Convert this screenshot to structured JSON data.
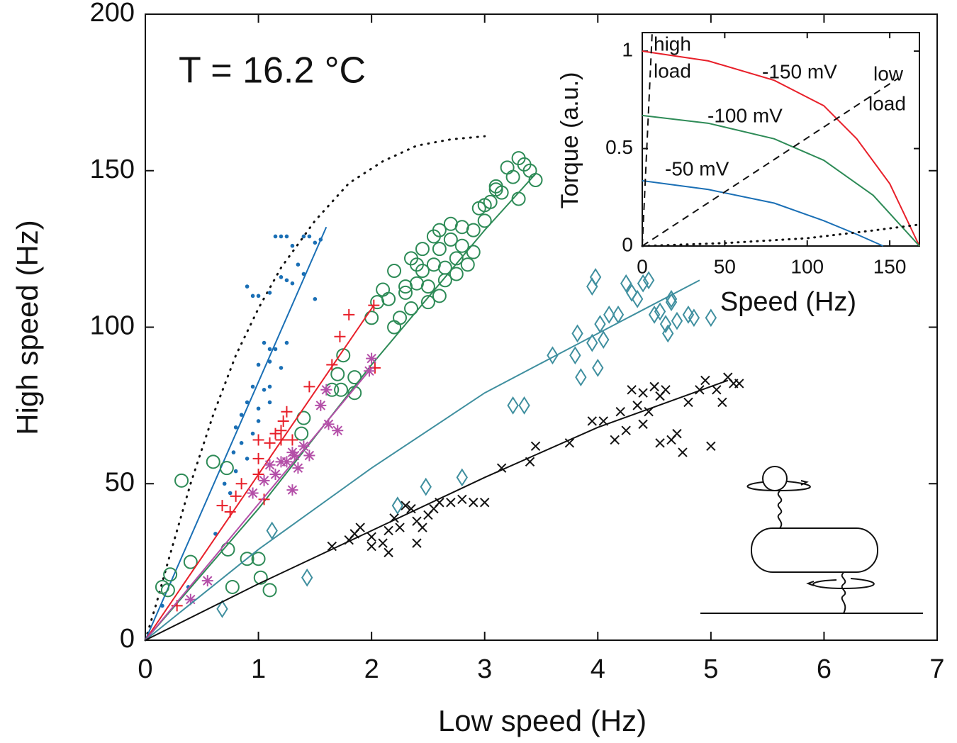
{
  "chart_data": [
    {
      "type": "scatter",
      "xlabel": "Low speed (Hz)",
      "ylabel": "High speed (Hz)",
      "annotation": "T = 16.2 °C",
      "xlim": [
        0,
        7
      ],
      "ylim": [
        0,
        200
      ],
      "xticks": [
        0,
        1,
        2,
        3,
        4,
        5,
        6,
        7
      ],
      "yticks": [
        0,
        50,
        100,
        150,
        200
      ],
      "series": [
        {
          "color": "#1a6fb5",
          "marker": "dot",
          "x": [
            1.15,
            1.2,
            1.25,
            1.3,
            1.4,
            1.45,
            1.5,
            1.55,
            0.9,
            0.95,
            1.0,
            1.1,
            1.2,
            1.25,
            1.3,
            1.35,
            1.4,
            1.5,
            1.05,
            1.1,
            1.15,
            1.25,
            1.0,
            1.1,
            1.2,
            0.95,
            1.05,
            1.1,
            0.9,
            1.0,
            1.1,
            0.85,
            1.0,
            0.8,
            0.95,
            0.85,
            0.78,
            0.9,
            0.8,
            0.7,
            0.75,
            0.62,
            0.38,
            0.15
          ],
          "values": [
            129,
            129,
            129,
            126,
            129,
            129,
            127,
            128,
            113,
            110,
            110,
            111,
            116,
            115,
            114,
            120,
            117,
            109,
            95,
            93,
            93,
            95,
            88,
            89,
            87,
            81,
            80,
            81,
            76,
            74,
            76,
            72,
            70,
            68,
            66,
            63,
            60,
            58,
            54,
            50,
            47,
            34,
            17,
            11
          ],
          "fit": {
            "x": [
              0,
              1.6
            ],
            "values": [
              0,
              132
            ]
          }
        },
        {
          "color": "#2e8b57",
          "marker": "circle",
          "x": [
            0.15,
            0.2,
            0.22,
            0.4,
            0.6,
            0.72,
            0.73,
            0.77,
            0.9,
            1.0,
            1.02,
            1.1,
            0.32,
            1.38,
            1.4,
            1.65,
            1.7,
            1.73,
            1.75,
            1.85,
            1.85,
            2.0,
            2.05,
            2.1,
            2.15,
            2.2,
            2.25,
            2.3,
            2.35,
            2.4,
            2.45,
            2.5,
            2.55,
            2.6,
            2.65,
            2.7,
            2.75,
            2.8,
            2.85,
            2.9,
            2.95,
            3.0,
            3.05,
            3.1,
            3.15,
            3.2,
            3.25,
            3.3,
            3.35,
            3.4,
            3.45,
            2.45,
            2.55,
            2.6,
            2.7,
            2.35,
            2.4,
            2.5,
            2.6,
            2.2,
            2.3,
            2.65,
            2.75,
            2.8,
            3.0,
            3.1,
            3.3,
            2.9
          ],
          "values": [
            17,
            16,
            21,
            25,
            57,
            55,
            29,
            17,
            26,
            26,
            20,
            16,
            51,
            66,
            71,
            80,
            85,
            80,
            91,
            84,
            79,
            103,
            108,
            112,
            109,
            100,
            103,
            111,
            106,
            114,
            118,
            113,
            120,
            125,
            119,
            128,
            122,
            126,
            120,
            131,
            138,
            134,
            140,
            144,
            143,
            151,
            148,
            154,
            152,
            150,
            147,
            125,
            129,
            131,
            133,
            122,
            120,
            108,
            110,
            118,
            113,
            115,
            117,
            132,
            139,
            145,
            141,
            124
          ],
          "fit": {
            "x": [
              0,
              1,
              2,
              3,
              3.45
            ],
            "values": [
              0,
              42,
              88,
              131,
              149
            ]
          }
        },
        {
          "color": "#e8202a",
          "marker": "plus",
          "x": [
            0.28,
            0.68,
            0.75,
            0.8,
            0.85,
            1.0,
            1.0,
            1.0,
            1.05,
            1.1,
            1.15,
            1.2,
            1.2,
            1.22,
            1.25,
            1.3,
            1.45,
            1.65,
            1.72,
            1.8,
            2.02,
            2.03
          ],
          "values": [
            11,
            43,
            41,
            46,
            50,
            53,
            58,
            64,
            45,
            63,
            66,
            67,
            64,
            70,
            73,
            64,
            81,
            88,
            97,
            104,
            107,
            87
          ],
          "fit": {
            "x": [
              0,
              2.02
            ],
            "values": [
              0,
              107
            ]
          }
        },
        {
          "color": "#b44fa8",
          "marker": "asterisk",
          "x": [
            0.4,
            0.55,
            0.95,
            1.05,
            1.1,
            1.15,
            1.2,
            1.25,
            1.3,
            1.32,
            1.4,
            1.45,
            1.55,
            1.6,
            1.62,
            1.7,
            1.98,
            2.0,
            1.3,
            1.35
          ],
          "values": [
            13,
            19,
            47,
            51,
            56,
            53,
            57,
            57,
            60,
            59,
            62,
            59,
            75,
            80,
            69,
            67,
            86,
            90,
            48,
            55
          ],
          "fit": {
            "x": [
              0,
              2.0
            ],
            "values": [
              0,
              87
            ]
          }
        },
        {
          "color": "#3f8f9f",
          "marker": "diamond",
          "x": [
            0.68,
            1.12,
            1.43,
            2.23,
            2.48,
            2.8,
            3.25,
            3.35,
            3.6,
            3.8,
            3.82,
            3.85,
            3.95,
            4.0,
            4.02,
            4.05,
            4.1,
            4.18,
            4.25,
            4.3,
            4.35,
            4.4,
            4.45,
            4.5,
            4.55,
            4.6,
            4.62,
            4.65,
            4.7,
            4.8,
            4.85,
            5.0,
            3.98,
            3.95,
            4.65
          ],
          "values": [
            10,
            35,
            20,
            43,
            49,
            52,
            75,
            75,
            91,
            91,
            98,
            84,
            95,
            87,
            101,
            96,
            104,
            104,
            114,
            111,
            109,
            114,
            115,
            104,
            105,
            101,
            98,
            108,
            102,
            104,
            103,
            103,
            116,
            113,
            109
          ],
          "fit": {
            "x": [
              0,
              1,
              2,
              3,
              4,
              4.9
            ],
            "values": [
              0,
              29,
              55,
              79,
              98,
              115
            ]
          }
        },
        {
          "color": "#111111",
          "marker": "x",
          "x": [
            1.65,
            1.8,
            1.85,
            1.9,
            2.0,
            2.1,
            2.15,
            2.2,
            2.25,
            2.3,
            2.35,
            2.4,
            2.45,
            2.5,
            2.55,
            2.6,
            2.7,
            2.8,
            2.9,
            3.0,
            3.15,
            3.4,
            3.45,
            3.75,
            3.95,
            4.05,
            4.15,
            4.25,
            4.3,
            4.35,
            4.4,
            4.45,
            4.5,
            4.55,
            4.6,
            4.65,
            4.7,
            4.75,
            4.8,
            4.9,
            4.95,
            5.0,
            5.05,
            5.1,
            5.15,
            5.2,
            5.25,
            2.15,
            2.4,
            2.0,
            4.4,
            4.55,
            4.2
          ],
          "values": [
            30,
            32,
            34,
            36,
            33,
            31,
            35,
            39,
            36,
            43,
            42,
            38,
            36,
            40,
            42,
            44,
            44,
            45,
            44,
            44,
            55,
            57,
            62,
            63,
            70,
            70,
            64,
            67,
            80,
            75,
            79,
            73,
            81,
            78,
            80,
            64,
            66,
            60,
            76,
            80,
            83,
            62,
            80,
            76,
            84,
            82,
            82,
            28,
            31,
            30,
            69,
            63,
            73
          ],
          "fit": {
            "x": [
              0,
              1,
              2,
              3,
              4,
              5.15
            ],
            "values": [
              0,
              18,
              35,
              52,
              68,
              83
            ]
          }
        }
      ],
      "dotted_curve": {
        "x": [
          0,
          0.1,
          0.2,
          0.4,
          0.6,
          0.8,
          1.0,
          1.2,
          1.5,
          1.8,
          2.1,
          2.4,
          2.7,
          3.0
        ],
        "values": [
          0,
          12,
          25,
          50,
          72,
          91,
          106,
          119,
          134,
          146,
          153,
          158,
          160,
          161
        ]
      }
    },
    {
      "type": "line",
      "xlabel": "Speed (Hz)",
      "ylabel": "Torque (a.u.)",
      "xlim": [
        0,
        168
      ],
      "ylim": [
        0,
        1.095
      ],
      "xticks": [
        0,
        50,
        100,
        150
      ],
      "yticks": [
        0,
        0.5,
        1
      ],
      "series": [
        {
          "name": "-150 mV",
          "color": "#e8202a",
          "x": [
            0,
            40,
            80,
            110,
            130,
            150,
            168
          ],
          "values": [
            1,
            0.95,
            0.85,
            0.72,
            0.55,
            0.32,
            0
          ]
        },
        {
          "name": "-100 mV",
          "color": "#2e8b57",
          "x": [
            0,
            40,
            80,
            110,
            140,
            168
          ],
          "values": [
            0.67,
            0.63,
            0.55,
            0.44,
            0.26,
            0
          ]
        },
        {
          "name": "-50 mV",
          "color": "#1a6fb5",
          "x": [
            0,
            40,
            80,
            110,
            130,
            146
          ],
          "values": [
            0.335,
            0.29,
            0.22,
            0.13,
            0.06,
            0
          ]
        }
      ],
      "loads": [
        {
          "label": [
            "high",
            "load"
          ],
          "x": [
            0,
            6
          ],
          "values": [
            0,
            1.095
          ]
        },
        {
          "label": [
            "low",
            "load"
          ],
          "x": [
            0,
            155
          ],
          "values": [
            0,
            0.86
          ]
        }
      ],
      "dotted_curve": {
        "x": [
          0,
          50,
          100,
          140,
          168
        ],
        "values": [
          0,
          0.015,
          0.04,
          0.08,
          0.11
        ]
      }
    }
  ]
}
